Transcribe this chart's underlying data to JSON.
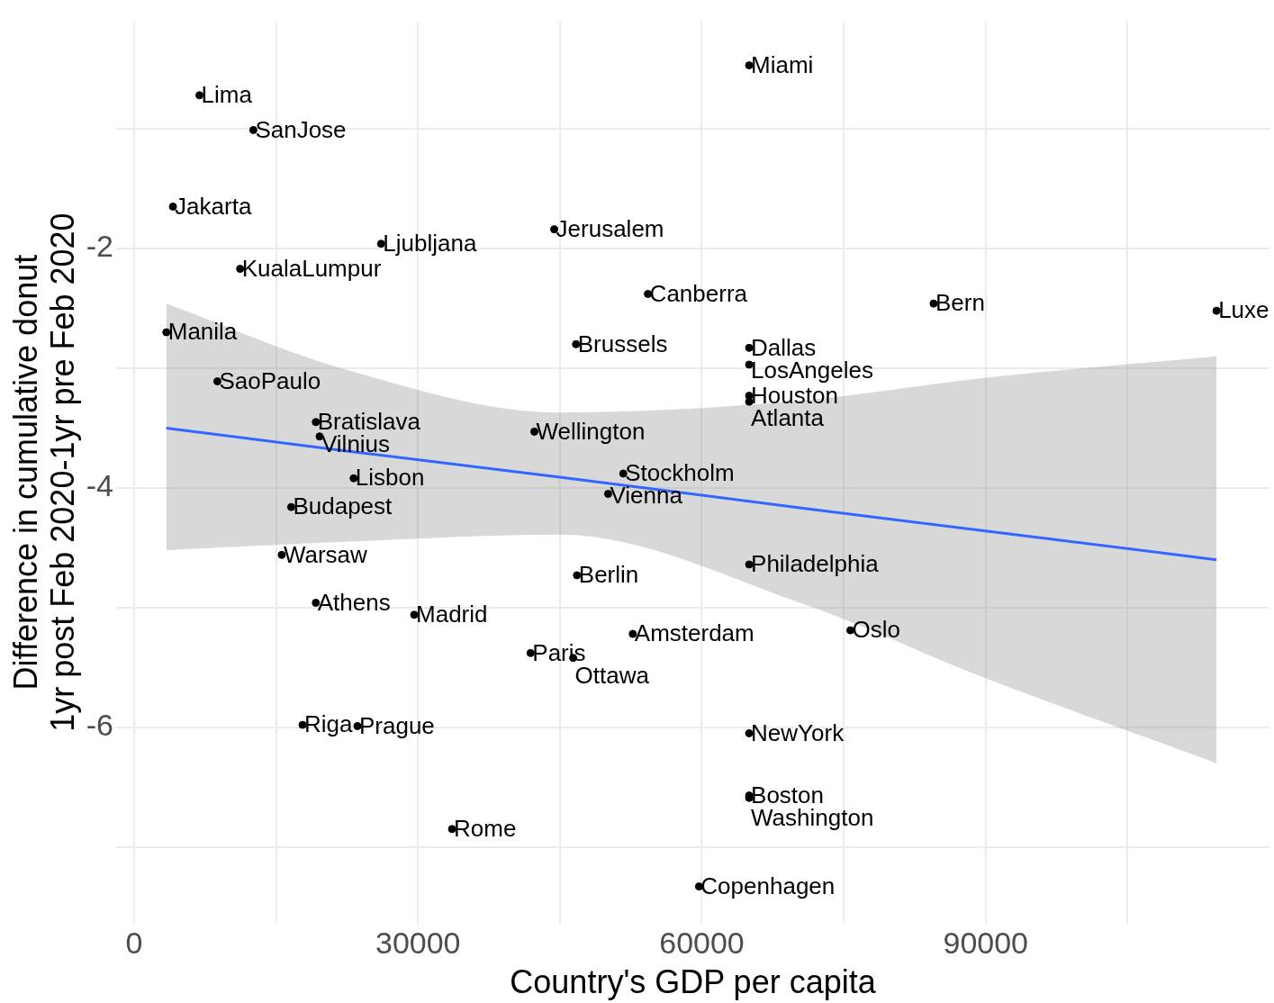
{
  "chart_data": {
    "type": "scatter",
    "xlabel": "Country's GDP per capita",
    "ylabel": "Difference in cumulative donut\n1yr post Feb 2020-1yr pre Feb 2020",
    "xlim": [
      -1900,
      120000
    ],
    "xticks": [
      0,
      {
        "value": 15000,
        "label": null
      },
      30000,
      {
        "value": 45000,
        "label": null
      },
      60000,
      {
        "value": 75000,
        "label": null
      },
      90000,
      {
        "value": 105000,
        "label": null
      }
    ],
    "ylim": [
      -7.64,
      -0.1
    ],
    "yticks": [
      {
        "value": -7,
        "label": null
      },
      -6,
      {
        "value": -5,
        "label": null
      },
      -4,
      {
        "value": -3,
        "label": null
      },
      -2,
      {
        "value": -1,
        "label": null
      }
    ],
    "grid": true,
    "legend": false,
    "marker": "circle",
    "series": [
      {
        "color": "#000000",
        "x": [
          65000,
          6900,
          12600,
          4100,
          26100,
          44400,
          11200,
          54300,
          84500,
          114400,
          3400,
          46700,
          65000,
          65000,
          65000,
          65000,
          8800,
          19200,
          19600,
          42300,
          51700,
          50100,
          23200,
          16600,
          15600,
          65000,
          46800,
          19200,
          29600,
          52700,
          75700,
          41900,
          46400,
          17800,
          23600,
          65000,
          65000,
          65000,
          33600,
          59700
        ],
        "values": [
          -0.47,
          -0.72,
          -1.01,
          -1.65,
          -1.96,
          -1.84,
          -2.17,
          -2.38,
          -2.46,
          -2.52,
          -2.7,
          -2.8,
          -2.83,
          -2.97,
          -3.23,
          -3.28,
          -3.11,
          -3.45,
          -3.57,
          -3.53,
          -3.88,
          -4.05,
          -3.92,
          -4.16,
          -4.56,
          -4.64,
          -4.73,
          -4.96,
          -5.06,
          -5.22,
          -5.19,
          -5.38,
          -5.42,
          -5.98,
          -5.99,
          -6.05,
          -6.57,
          -6.59,
          -6.85,
          -7.33
        ]
      },
      {
        "type": "line",
        "marker": "none",
        "color": "#3366ff",
        "x": [
          3400,
          22300,
          45000,
          70700,
          90000,
          114400
        ],
        "values": [
          -3.5,
          -3.69,
          -3.91,
          -4.17,
          -4.36,
          -4.6
        ],
        "lower": [
          -4.52,
          -4.45,
          -4.39,
          -4.97,
          -5.59,
          -6.3
        ],
        "upper": [
          -2.46,
          -3.01,
          -3.37,
          -3.27,
          -3.08,
          -2.9
        ]
      }
    ],
    "annotations": [
      {
        "text": "Miami",
        "x": 65000,
        "y": -0.47
      },
      {
        "text": "Lima",
        "x": 6900,
        "y": -0.72
      },
      {
        "text": "SanJose",
        "x": 12600,
        "y": -1.01
      },
      {
        "text": "Jakarta",
        "x": 4100,
        "y": -1.65
      },
      {
        "text": "Ljubljana",
        "x": 26100,
        "y": -1.96
      },
      {
        "text": "Jerusalem",
        "x": 44400,
        "y": -1.84
      },
      {
        "text": "KualaLumpur",
        "x": 11200,
        "y": -2.17
      },
      {
        "text": "Canberra",
        "x": 54300,
        "y": -2.38
      },
      {
        "text": "Bern",
        "x": 84500,
        "y": -2.46
      },
      {
        "text": "Luxe",
        "x": 114400,
        "y": -2.52
      },
      {
        "text": "Manila",
        "x": 3400,
        "y": -2.7
      },
      {
        "text": "Brussels",
        "x": 46700,
        "y": -2.8
      },
      {
        "text": "Dallas",
        "x": 65000,
        "y": -2.83
      },
      {
        "text": "LosAngeles",
        "x": 65000,
        "y": -2.97
      },
      {
        "text": "Houston",
        "x": 65000,
        "y": -3.23
      },
      {
        "text": "Atlanta",
        "x": 65000,
        "y": -3.28
      },
      {
        "text": "SaoPaulo",
        "x": 8800,
        "y": -3.11
      },
      {
        "text": "Bratislava",
        "x": 19200,
        "y": -3.45
      },
      {
        "text": "Vilnius",
        "x": 19600,
        "y": -3.57
      },
      {
        "text": "Wellington",
        "x": 42300,
        "y": -3.53
      },
      {
        "text": "Stockholm",
        "x": 51700,
        "y": -3.88
      },
      {
        "text": "Vienna",
        "x": 50100,
        "y": -4.05
      },
      {
        "text": "Lisbon",
        "x": 23200,
        "y": -3.92
      },
      {
        "text": "Budapest",
        "x": 16600,
        "y": -4.16
      },
      {
        "text": "Warsaw",
        "x": 15600,
        "y": -4.56
      },
      {
        "text": "Philadelphia",
        "x": 65000,
        "y": -4.64
      },
      {
        "text": "Berlin",
        "x": 46800,
        "y": -4.73
      },
      {
        "text": "Athens",
        "x": 19200,
        "y": -4.96
      },
      {
        "text": "Madrid",
        "x": 29600,
        "y": -5.06
      },
      {
        "text": "Amsterdam",
        "x": 52700,
        "y": -5.22
      },
      {
        "text": "Oslo",
        "x": 75700,
        "y": -5.19
      },
      {
        "text": "Paris",
        "x": 41900,
        "y": -5.38
      },
      {
        "text": "Ottawa",
        "x": 46400,
        "y": -5.42
      },
      {
        "text": "Riga",
        "x": 17800,
        "y": -5.98
      },
      {
        "text": "Prague",
        "x": 23600,
        "y": -5.99
      },
      {
        "text": "NewYork",
        "x": 65000,
        "y": -6.05
      },
      {
        "text": "Boston",
        "x": 65000,
        "y": -6.57
      },
      {
        "text": "Washington",
        "x": 65000,
        "y": -6.59
      },
      {
        "text": "Rome",
        "x": 33600,
        "y": -6.85
      },
      {
        "text": "Copenhagen",
        "x": 59700,
        "y": -7.33
      }
    ]
  }
}
